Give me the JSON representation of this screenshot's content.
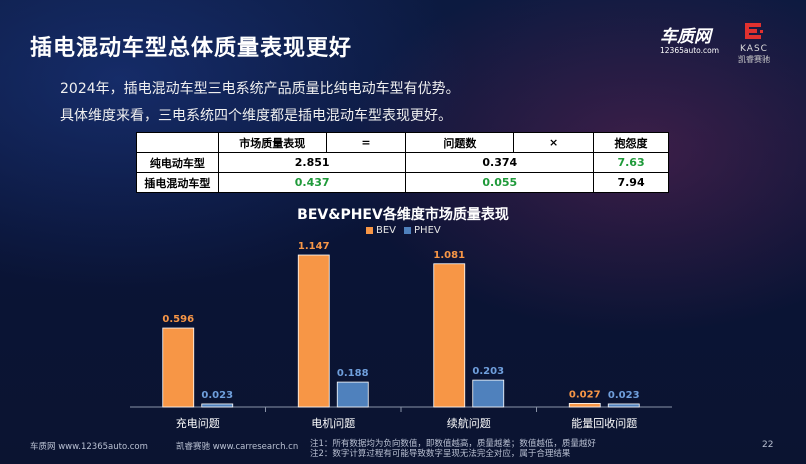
{
  "header": {
    "title": "插电混动车型总体质量表现更好",
    "logo1": {
      "main": "车质网",
      "sub": "12365auto.com"
    },
    "logo2": {
      "main": "KASC",
      "sub": "凯睿赛驰"
    }
  },
  "paragraphs": {
    "p1": "2024年，插电混动车型三电系统产品质量比纯电动车型有优势。",
    "p2": "具体维度来看，三电系统四个维度都是插电混动车型表现更好。"
  },
  "table": {
    "header": [
      "",
      "市场质量表现",
      "=",
      "问题数",
      "×",
      "抱怨度"
    ],
    "rows": [
      {
        "label": "纯电动车型",
        "market": "2.851",
        "issues": "0.374",
        "complaint": "7.63"
      },
      {
        "label": "插电混动车型",
        "market": "0.437",
        "issues": "0.055",
        "complaint": "7.94"
      }
    ]
  },
  "chart_data": {
    "type": "bar",
    "title": "BEV&PHEV各维度市场质量表现",
    "categories": [
      "充电问题",
      "电机问题",
      "续航问题",
      "能量回收问题"
    ],
    "series": [
      {
        "name": "BEV",
        "color": "#f79646",
        "values": [
          0.596,
          1.147,
          1.081,
          0.027
        ]
      },
      {
        "name": "PHEV",
        "color": "#4f81bd",
        "values": [
          0.023,
          0.188,
          0.203,
          0.023
        ]
      }
    ],
    "value_labels": {
      "BEV": [
        "0.596",
        "1.147",
        "1.081",
        "0.027"
      ],
      "PHEV": [
        "0.023",
        "0.188",
        "0.203",
        "0.023"
      ]
    },
    "ylim": [
      0,
      1.2
    ],
    "legend": "top-center",
    "grid": false
  },
  "footer": {
    "source1": "车质网 www.12365auto.com",
    "source2": "凯睿赛驰 www.carresearch.cn",
    "note1": "注1：所有数据均为负向数值，即数值越高，质量越差；数值越低，质量越好",
    "note2": "注2：数字计算过程有可能导致数字呈现无法完全对应，属于合理结果",
    "page": "22"
  }
}
